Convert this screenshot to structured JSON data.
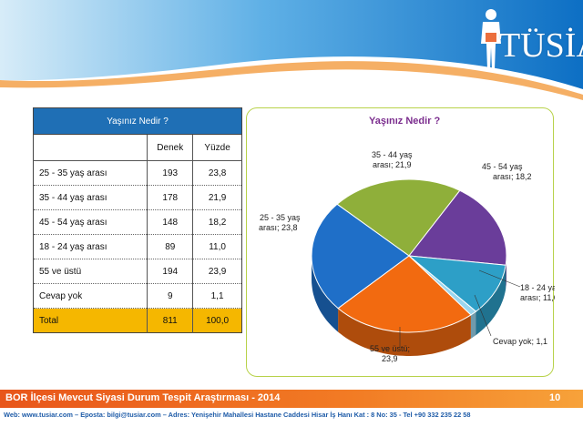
{
  "logo": {
    "brand": "TÜSİAR",
    "tagline": ""
  },
  "table": {
    "title": "Yaşınız Nedir ?",
    "headers": {
      "label": "",
      "count": "Denek",
      "percent": "Yüzde"
    },
    "rows": [
      {
        "label": "25 - 35 yaş arası",
        "count": "193",
        "percent": "23,8"
      },
      {
        "label": "35 - 44 yaş arası",
        "count": "178",
        "percent": "21,9"
      },
      {
        "label": "45 - 54 yaş arası",
        "count": "148",
        "percent": "18,2"
      },
      {
        "label": "18 - 24 yaş arası",
        "count": "89",
        "percent": "11,0"
      },
      {
        "label": "55 ve üstü",
        "count": "194",
        "percent": "23,9"
      },
      {
        "label": "Cevap yok",
        "count": "9",
        "percent": "1,1"
      }
    ],
    "total": {
      "label": "Total",
      "count": "811",
      "percent": "100,0"
    }
  },
  "chart_data": {
    "type": "pie",
    "title": "Yaşınız Nedir ?",
    "slices": [
      {
        "label_line1": "35 - 44 yaş",
        "label_line2": "arası; 21,9",
        "value": 21.9,
        "color": "#8faf3a"
      },
      {
        "label_line1": "45 - 54 yaş",
        "label_line2": "arası; 18,2",
        "value": 18.2,
        "color": "#6a3d9a"
      },
      {
        "label_line1": "18 - 24 yaş",
        "label_line2": "arası; 11,0",
        "value": 11.0,
        "color": "#2d9fc7"
      },
      {
        "label_line1": "Cevap yok; 1,1",
        "label_line2": "",
        "value": 1.1,
        "color": "#9bd6ee"
      },
      {
        "label_line1": "55 ve üstü;",
        "label_line2": "23,9",
        "value": 23.9,
        "color": "#f26a10"
      },
      {
        "label_line1": "25 - 35 yaş",
        "label_line2": "arası; 23,8",
        "value": 23.8,
        "color": "#1f6fc8"
      }
    ],
    "legend": "none",
    "three_d": true
  },
  "footer": {
    "title": "BOR İlçesi Mevcut Siyasi Durum Tespit Araştırması - 2014",
    "page": "10",
    "contact": "Web: www.tusiar.com – Eposta: bilgi@tusiar.com – Adres: Yenişehir Mahallesi Hastane Caddesi Hisar İş Hanı Kat : 8 No: 35 - Tel +90 332 235 22 58"
  },
  "colors": {
    "header_blue": "#1f6fb5",
    "total_gold": "#f5b700",
    "footer_orange": "#f27b24",
    "title_purple": "#7b2d8e"
  }
}
